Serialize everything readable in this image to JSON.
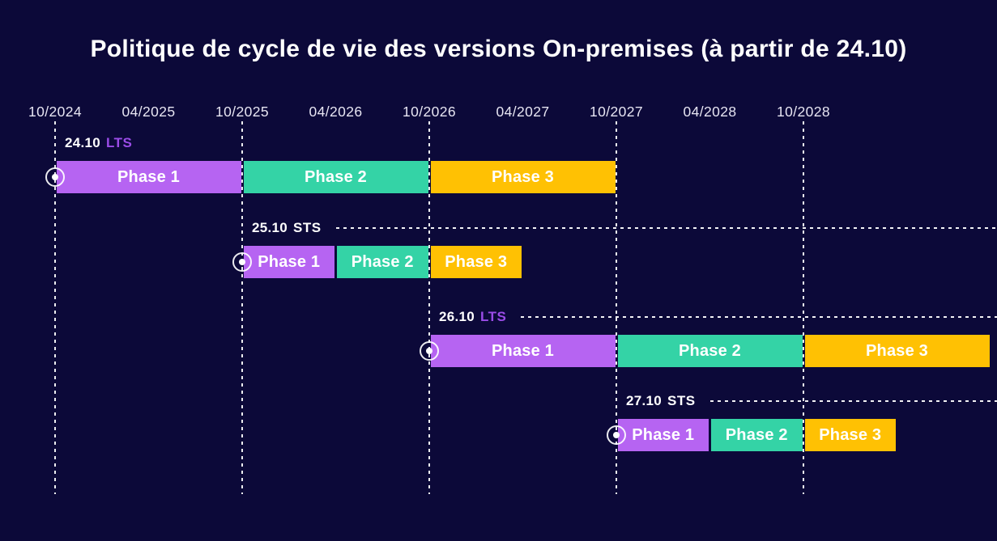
{
  "title": "Politique de cycle de vie des versions On-premises (à partir de 24.10)",
  "colors": {
    "background": "#0c0939",
    "phase_colors": [
      "#b664f2",
      "#34d3a6",
      "#ffc103"
    ],
    "lts_channel_text": "#9b4ce8",
    "sts_channel_text": "#ffffff",
    "title_text": "#ffffff",
    "axis_text": "#e7e5f2",
    "gridline": "#ffffff"
  },
  "chart_data": {
    "type": "gantt",
    "title": "Politique de cycle de vie des versions On-premises (à partir de 24.10)",
    "axis": {
      "ticks": [
        "10/2024",
        "04/2025",
        "10/2025",
        "04/2026",
        "10/2026",
        "04/2027",
        "10/2027",
        "04/2028",
        "10/2028"
      ],
      "gridline_ticks": [
        "10/2024",
        "10/2025",
        "10/2026",
        "10/2027",
        "10/2028"
      ],
      "grid": "vertical-dashed-october-only",
      "range_note": "bars may extend past 10/2028 to 10/2029"
    },
    "rows": [
      {
        "version": "24.10",
        "channel": "LTS",
        "start": "10/2024",
        "label_line": false,
        "phases": [
          {
            "label": "Phase 1",
            "start": "10/2024",
            "end": "10/2025"
          },
          {
            "label": "Phase 2",
            "start": "10/2025",
            "end": "10/2026"
          },
          {
            "label": "Phase 3",
            "start": "10/2026",
            "end": "10/2027"
          }
        ]
      },
      {
        "version": "25.10",
        "channel": "STS",
        "start": "10/2025",
        "label_line": true,
        "phases": [
          {
            "label": "Phase 1",
            "start": "10/2025",
            "end": "04/2026"
          },
          {
            "label": "Phase 2",
            "start": "04/2026",
            "end": "10/2026"
          },
          {
            "label": "Phase 3",
            "start": "10/2026",
            "end": "04/2027"
          }
        ]
      },
      {
        "version": "26.10",
        "channel": "LTS",
        "start": "10/2026",
        "label_line": true,
        "phases": [
          {
            "label": "Phase 1",
            "start": "10/2026",
            "end": "10/2027"
          },
          {
            "label": "Phase 2",
            "start": "10/2027",
            "end": "10/2028"
          },
          {
            "label": "Phase 3",
            "start": "10/2028",
            "end": "10/2029"
          }
        ]
      },
      {
        "version": "27.10",
        "channel": "STS",
        "start": "10/2027",
        "label_line": true,
        "phases": [
          {
            "label": "Phase 1",
            "start": "10/2027",
            "end": "04/2028"
          },
          {
            "label": "Phase 2",
            "start": "04/2028",
            "end": "10/2028"
          },
          {
            "label": "Phase 3",
            "start": "10/2028",
            "end": "04/2029"
          }
        ]
      }
    ]
  }
}
